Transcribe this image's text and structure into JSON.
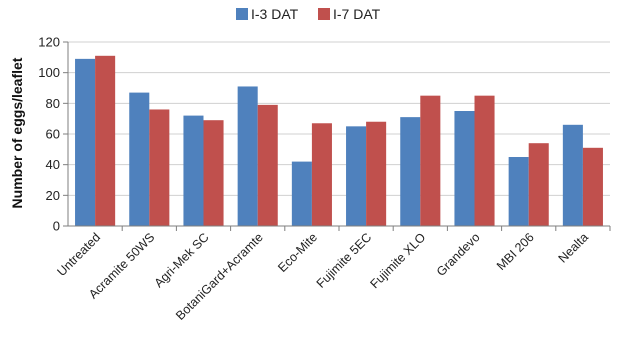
{
  "chart_data": {
    "type": "bar",
    "title": "",
    "xlabel": "",
    "ylabel": "Number of eggs/leaflet",
    "ylim": [
      0,
      120
    ],
    "yticks": [
      0,
      20,
      40,
      60,
      80,
      100,
      120
    ],
    "grid": true,
    "legend_position": "top-center",
    "categories": [
      "Untreated",
      "Acramite 50WS",
      "Agri-Mek SC",
      "BotaniGard+Acramte",
      "Eco-Mite",
      "Fujimite 5EC",
      "Fujimite XLO",
      "Grandevo",
      "MBI 206",
      "Nealta"
    ],
    "series": [
      {
        "name": "I-3 DAT",
        "color": "#4F81BD",
        "values": [
          109,
          87,
          72,
          91,
          42,
          65,
          71,
          75,
          45,
          66
        ]
      },
      {
        "name": "I-7 DAT",
        "color": "#C0504D",
        "values": [
          111,
          76,
          69,
          79,
          67,
          68,
          85,
          85,
          54,
          51
        ]
      }
    ]
  }
}
